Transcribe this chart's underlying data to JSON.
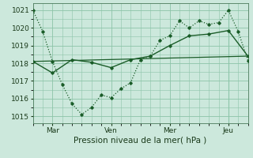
{
  "bg_color": "#cce8dc",
  "line_color": "#1a5c28",
  "grid_color": "#8cc4a8",
  "xlabel": "Pression niveau de la mer( hPa )",
  "yticks": [
    1015,
    1016,
    1017,
    1018,
    1019,
    1020,
    1021
  ],
  "ylim": [
    1014.6,
    1021.4
  ],
  "xtick_labels": [
    "Mar",
    "Ven",
    "Mer",
    "Jeu"
  ],
  "xtick_positions": [
    1,
    4,
    7,
    10
  ],
  "xlim": [
    0,
    11
  ],
  "series1_x": [
    0,
    0.5,
    1.0,
    1.5,
    2.0,
    2.5,
    3.0,
    3.5,
    4.0,
    4.5,
    5.0,
    5.5,
    6.0,
    6.5,
    7.0,
    7.5,
    8.0,
    8.5,
    9.0,
    9.5,
    10.0,
    10.5,
    11.0
  ],
  "series1_y": [
    1021.0,
    1019.8,
    1018.1,
    1016.8,
    1015.7,
    1015.1,
    1015.5,
    1016.2,
    1016.05,
    1016.55,
    1016.9,
    1018.2,
    1018.4,
    1019.3,
    1019.55,
    1020.4,
    1020.0,
    1020.4,
    1020.2,
    1020.3,
    1021.0,
    1019.8,
    1018.15
  ],
  "series2_x": [
    0,
    1,
    2,
    3,
    4,
    5,
    6,
    7,
    8,
    9,
    10,
    11
  ],
  "series2_y": [
    1018.1,
    1017.45,
    1018.2,
    1018.05,
    1017.75,
    1018.2,
    1018.4,
    1019.0,
    1019.55,
    1019.65,
    1019.85,
    1018.4
  ],
  "series3_x": [
    0,
    11
  ],
  "series3_y": [
    1018.1,
    1018.4
  ],
  "vline_x": [
    10.0
  ]
}
